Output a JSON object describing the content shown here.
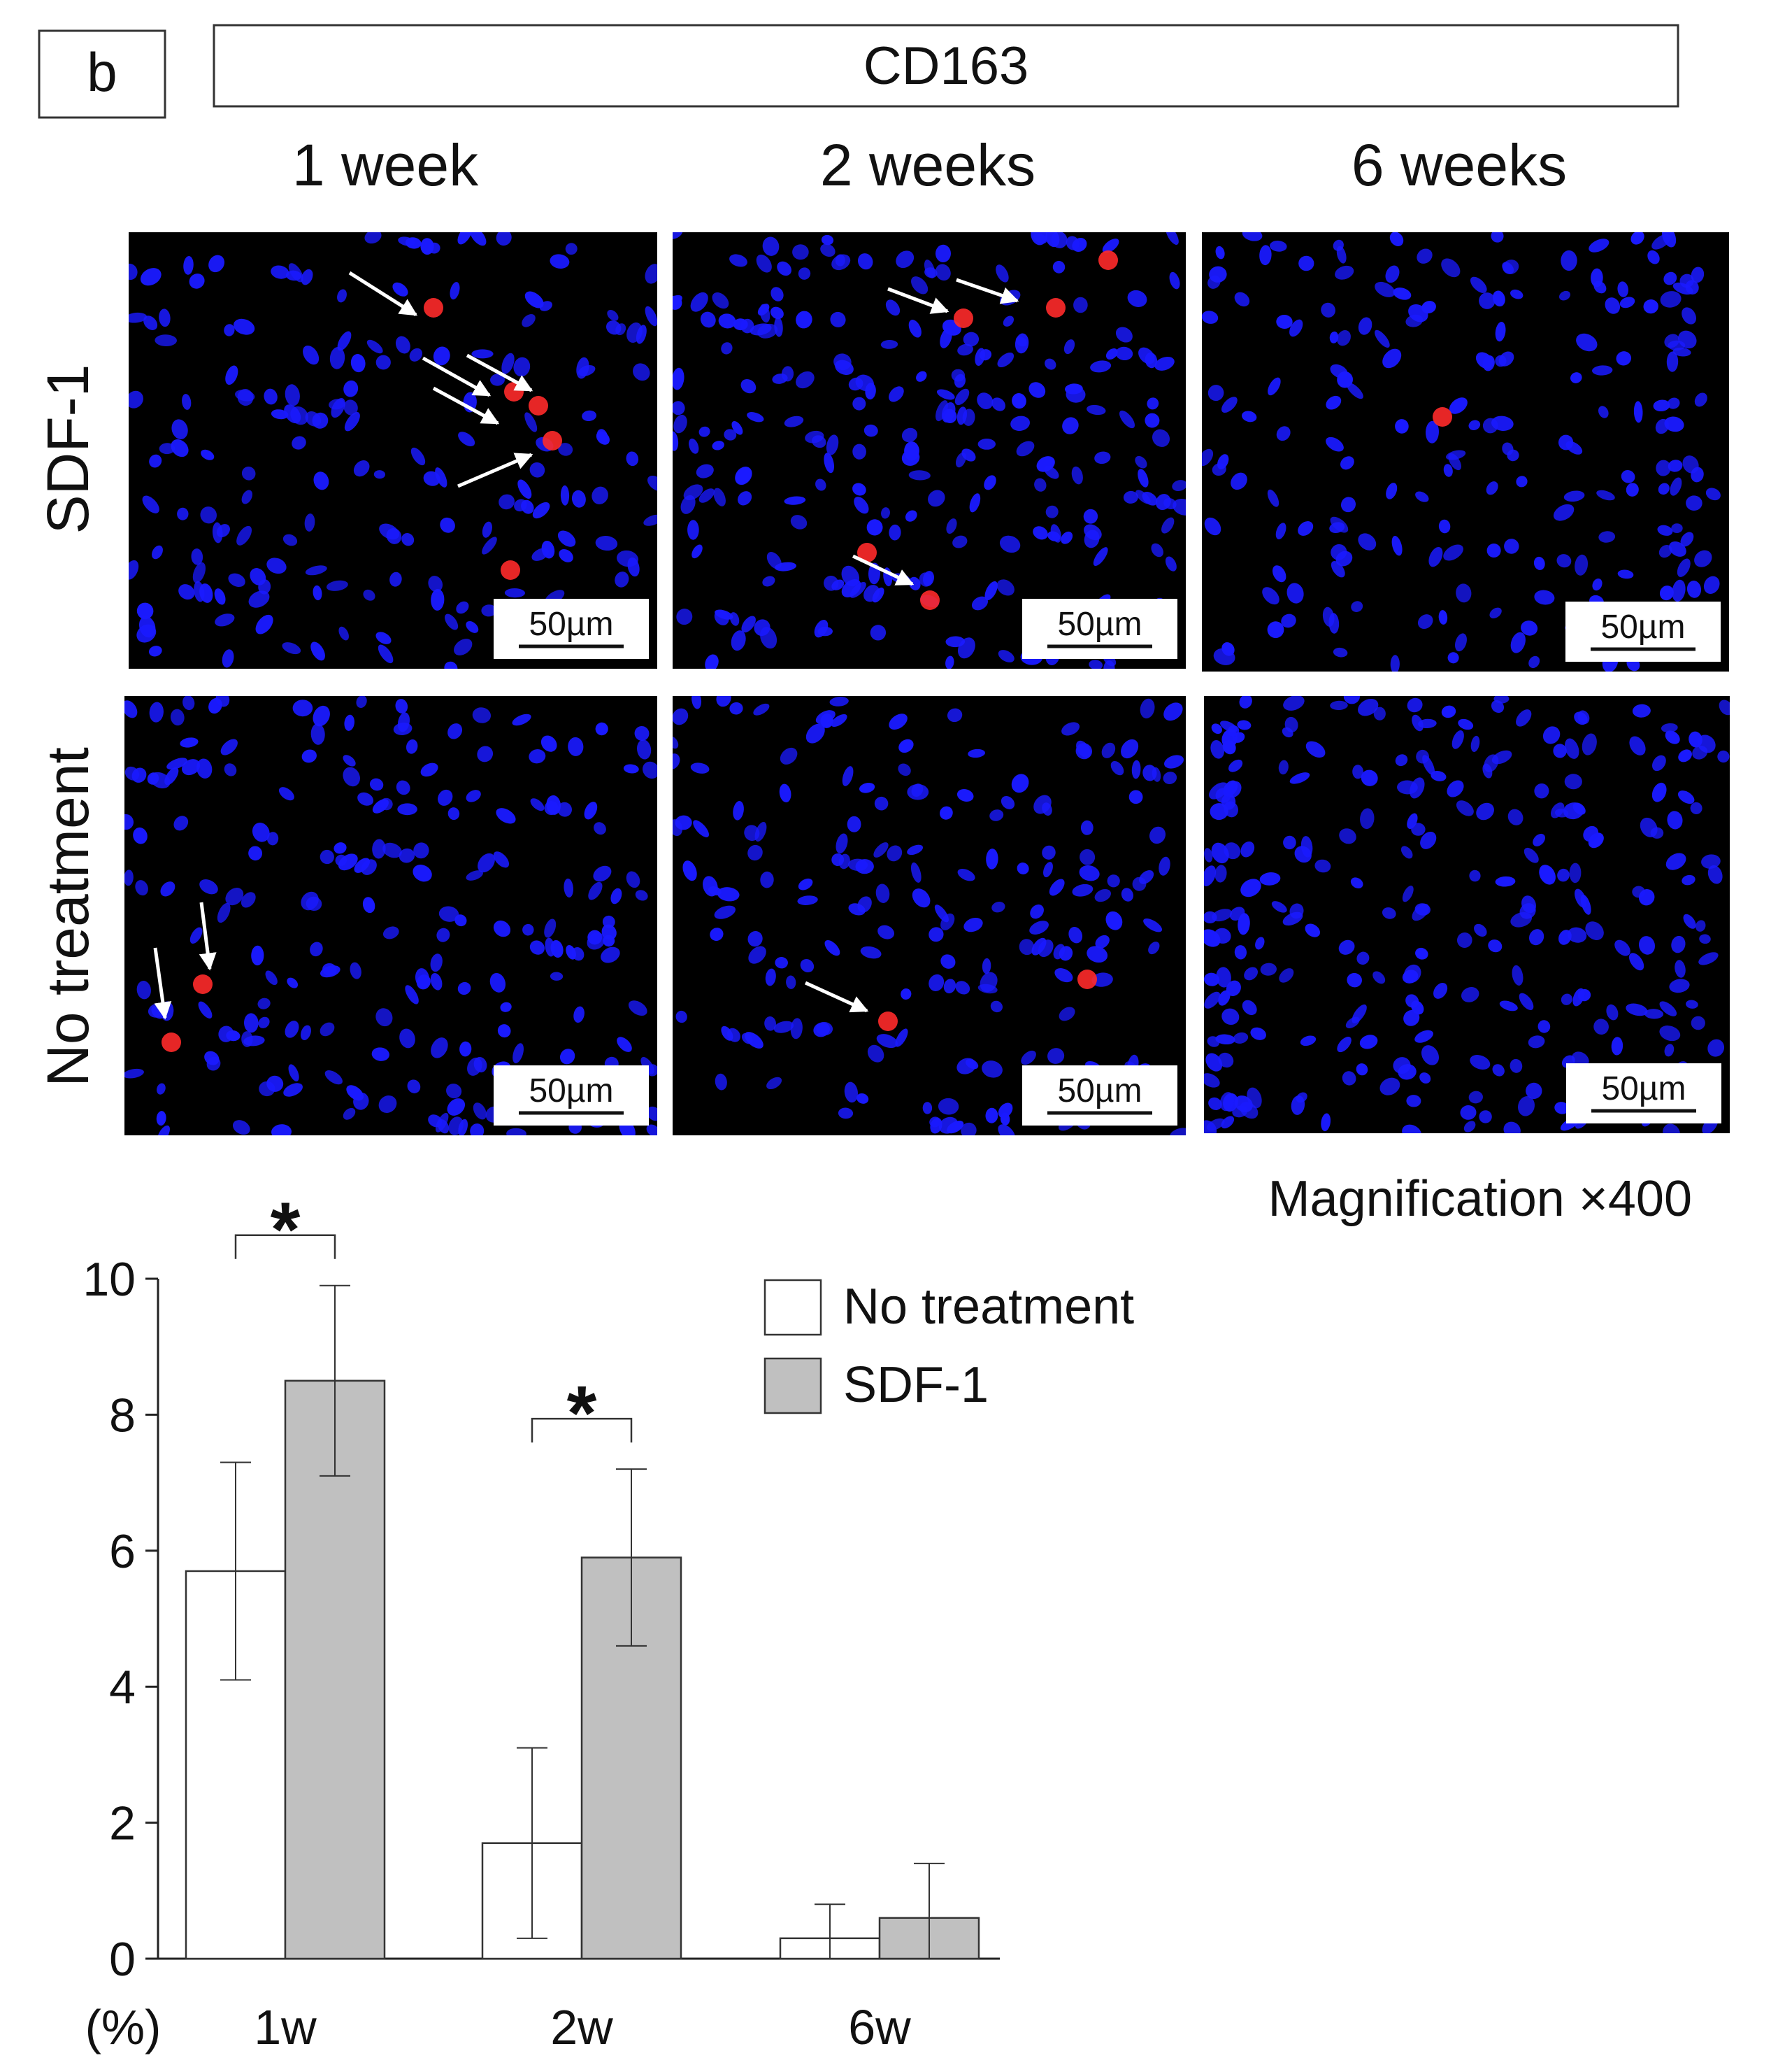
{
  "panel_label": "b",
  "marker_title": "CD163",
  "time_labels": [
    "1 week",
    "2 weeks",
    "6 weeks"
  ],
  "row_labels": [
    "SDF-1",
    "No treatment"
  ],
  "scale_bar_label": "50µm",
  "magnification_label": "Magnification ×400",
  "micrographs": {
    "nuclei_color": "#1a1aff",
    "marker_color": "#ff2a2a",
    "background_color": "#000000",
    "arrow_color": "#ffffff"
  },
  "chart_data": {
    "type": "bar",
    "categories": [
      "1w",
      "2w",
      "6w"
    ],
    "series": [
      {
        "name": "No treatment",
        "color": "#ffffff",
        "values": [
          5.7,
          1.7,
          0.3
        ],
        "error": [
          1.6,
          1.4,
          0.5
        ]
      },
      {
        "name": "SDF-1",
        "color": "#c0c0c0",
        "values": [
          8.5,
          5.9,
          0.6
        ],
        "error": [
          1.4,
          1.3,
          0.8
        ]
      }
    ],
    "yticks": [
      0,
      2,
      4,
      6,
      8,
      10
    ],
    "ylim": [
      0,
      10
    ],
    "ylabel": "(%)",
    "xlabel": "",
    "title": "",
    "significance": [
      {
        "category": "1w",
        "label": "*"
      },
      {
        "category": "2w",
        "label": "*"
      }
    ],
    "legend_position": "top-right"
  }
}
